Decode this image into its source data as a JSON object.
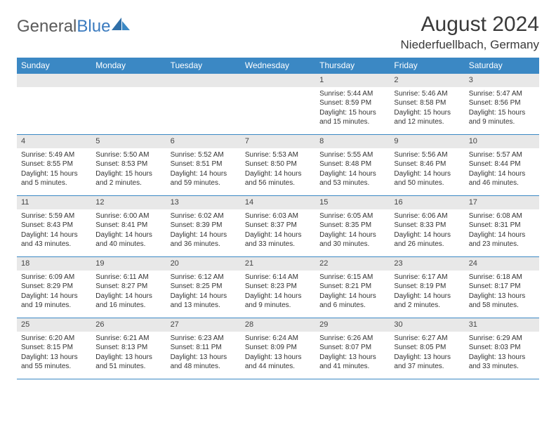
{
  "logo": {
    "text1": "General",
    "text2": "Blue"
  },
  "header": {
    "month": "August 2024",
    "location": "Niederfuellbach, Germany"
  },
  "colors": {
    "header_bg": "#3b88c4",
    "daynum_bg": "#e8e8e8",
    "row_border": "#3b88c4",
    "logo_gray": "#5a5a5a",
    "logo_blue": "#3b7bbf",
    "title_color": "#3a3a3a",
    "text_color": "#333333"
  },
  "weekdays": [
    "Sunday",
    "Monday",
    "Tuesday",
    "Wednesday",
    "Thursday",
    "Friday",
    "Saturday"
  ],
  "weeks": [
    [
      null,
      null,
      null,
      null,
      {
        "n": "1",
        "sr": "Sunrise: 5:44 AM",
        "ss": "Sunset: 8:59 PM",
        "d1": "Daylight: 15 hours",
        "d2": "and 15 minutes."
      },
      {
        "n": "2",
        "sr": "Sunrise: 5:46 AM",
        "ss": "Sunset: 8:58 PM",
        "d1": "Daylight: 15 hours",
        "d2": "and 12 minutes."
      },
      {
        "n": "3",
        "sr": "Sunrise: 5:47 AM",
        "ss": "Sunset: 8:56 PM",
        "d1": "Daylight: 15 hours",
        "d2": "and 9 minutes."
      }
    ],
    [
      {
        "n": "4",
        "sr": "Sunrise: 5:49 AM",
        "ss": "Sunset: 8:55 PM",
        "d1": "Daylight: 15 hours",
        "d2": "and 5 minutes."
      },
      {
        "n": "5",
        "sr": "Sunrise: 5:50 AM",
        "ss": "Sunset: 8:53 PM",
        "d1": "Daylight: 15 hours",
        "d2": "and 2 minutes."
      },
      {
        "n": "6",
        "sr": "Sunrise: 5:52 AM",
        "ss": "Sunset: 8:51 PM",
        "d1": "Daylight: 14 hours",
        "d2": "and 59 minutes."
      },
      {
        "n": "7",
        "sr": "Sunrise: 5:53 AM",
        "ss": "Sunset: 8:50 PM",
        "d1": "Daylight: 14 hours",
        "d2": "and 56 minutes."
      },
      {
        "n": "8",
        "sr": "Sunrise: 5:55 AM",
        "ss": "Sunset: 8:48 PM",
        "d1": "Daylight: 14 hours",
        "d2": "and 53 minutes."
      },
      {
        "n": "9",
        "sr": "Sunrise: 5:56 AM",
        "ss": "Sunset: 8:46 PM",
        "d1": "Daylight: 14 hours",
        "d2": "and 50 minutes."
      },
      {
        "n": "10",
        "sr": "Sunrise: 5:57 AM",
        "ss": "Sunset: 8:44 PM",
        "d1": "Daylight: 14 hours",
        "d2": "and 46 minutes."
      }
    ],
    [
      {
        "n": "11",
        "sr": "Sunrise: 5:59 AM",
        "ss": "Sunset: 8:43 PM",
        "d1": "Daylight: 14 hours",
        "d2": "and 43 minutes."
      },
      {
        "n": "12",
        "sr": "Sunrise: 6:00 AM",
        "ss": "Sunset: 8:41 PM",
        "d1": "Daylight: 14 hours",
        "d2": "and 40 minutes."
      },
      {
        "n": "13",
        "sr": "Sunrise: 6:02 AM",
        "ss": "Sunset: 8:39 PM",
        "d1": "Daylight: 14 hours",
        "d2": "and 36 minutes."
      },
      {
        "n": "14",
        "sr": "Sunrise: 6:03 AM",
        "ss": "Sunset: 8:37 PM",
        "d1": "Daylight: 14 hours",
        "d2": "and 33 minutes."
      },
      {
        "n": "15",
        "sr": "Sunrise: 6:05 AM",
        "ss": "Sunset: 8:35 PM",
        "d1": "Daylight: 14 hours",
        "d2": "and 30 minutes."
      },
      {
        "n": "16",
        "sr": "Sunrise: 6:06 AM",
        "ss": "Sunset: 8:33 PM",
        "d1": "Daylight: 14 hours",
        "d2": "and 26 minutes."
      },
      {
        "n": "17",
        "sr": "Sunrise: 6:08 AM",
        "ss": "Sunset: 8:31 PM",
        "d1": "Daylight: 14 hours",
        "d2": "and 23 minutes."
      }
    ],
    [
      {
        "n": "18",
        "sr": "Sunrise: 6:09 AM",
        "ss": "Sunset: 8:29 PM",
        "d1": "Daylight: 14 hours",
        "d2": "and 19 minutes."
      },
      {
        "n": "19",
        "sr": "Sunrise: 6:11 AM",
        "ss": "Sunset: 8:27 PM",
        "d1": "Daylight: 14 hours",
        "d2": "and 16 minutes."
      },
      {
        "n": "20",
        "sr": "Sunrise: 6:12 AM",
        "ss": "Sunset: 8:25 PM",
        "d1": "Daylight: 14 hours",
        "d2": "and 13 minutes."
      },
      {
        "n": "21",
        "sr": "Sunrise: 6:14 AM",
        "ss": "Sunset: 8:23 PM",
        "d1": "Daylight: 14 hours",
        "d2": "and 9 minutes."
      },
      {
        "n": "22",
        "sr": "Sunrise: 6:15 AM",
        "ss": "Sunset: 8:21 PM",
        "d1": "Daylight: 14 hours",
        "d2": "and 6 minutes."
      },
      {
        "n": "23",
        "sr": "Sunrise: 6:17 AM",
        "ss": "Sunset: 8:19 PM",
        "d1": "Daylight: 14 hours",
        "d2": "and 2 minutes."
      },
      {
        "n": "24",
        "sr": "Sunrise: 6:18 AM",
        "ss": "Sunset: 8:17 PM",
        "d1": "Daylight: 13 hours",
        "d2": "and 58 minutes."
      }
    ],
    [
      {
        "n": "25",
        "sr": "Sunrise: 6:20 AM",
        "ss": "Sunset: 8:15 PM",
        "d1": "Daylight: 13 hours",
        "d2": "and 55 minutes."
      },
      {
        "n": "26",
        "sr": "Sunrise: 6:21 AM",
        "ss": "Sunset: 8:13 PM",
        "d1": "Daylight: 13 hours",
        "d2": "and 51 minutes."
      },
      {
        "n": "27",
        "sr": "Sunrise: 6:23 AM",
        "ss": "Sunset: 8:11 PM",
        "d1": "Daylight: 13 hours",
        "d2": "and 48 minutes."
      },
      {
        "n": "28",
        "sr": "Sunrise: 6:24 AM",
        "ss": "Sunset: 8:09 PM",
        "d1": "Daylight: 13 hours",
        "d2": "and 44 minutes."
      },
      {
        "n": "29",
        "sr": "Sunrise: 6:26 AM",
        "ss": "Sunset: 8:07 PM",
        "d1": "Daylight: 13 hours",
        "d2": "and 41 minutes."
      },
      {
        "n": "30",
        "sr": "Sunrise: 6:27 AM",
        "ss": "Sunset: 8:05 PM",
        "d1": "Daylight: 13 hours",
        "d2": "and 37 minutes."
      },
      {
        "n": "31",
        "sr": "Sunrise: 6:29 AM",
        "ss": "Sunset: 8:03 PM",
        "d1": "Daylight: 13 hours",
        "d2": "and 33 minutes."
      }
    ]
  ]
}
